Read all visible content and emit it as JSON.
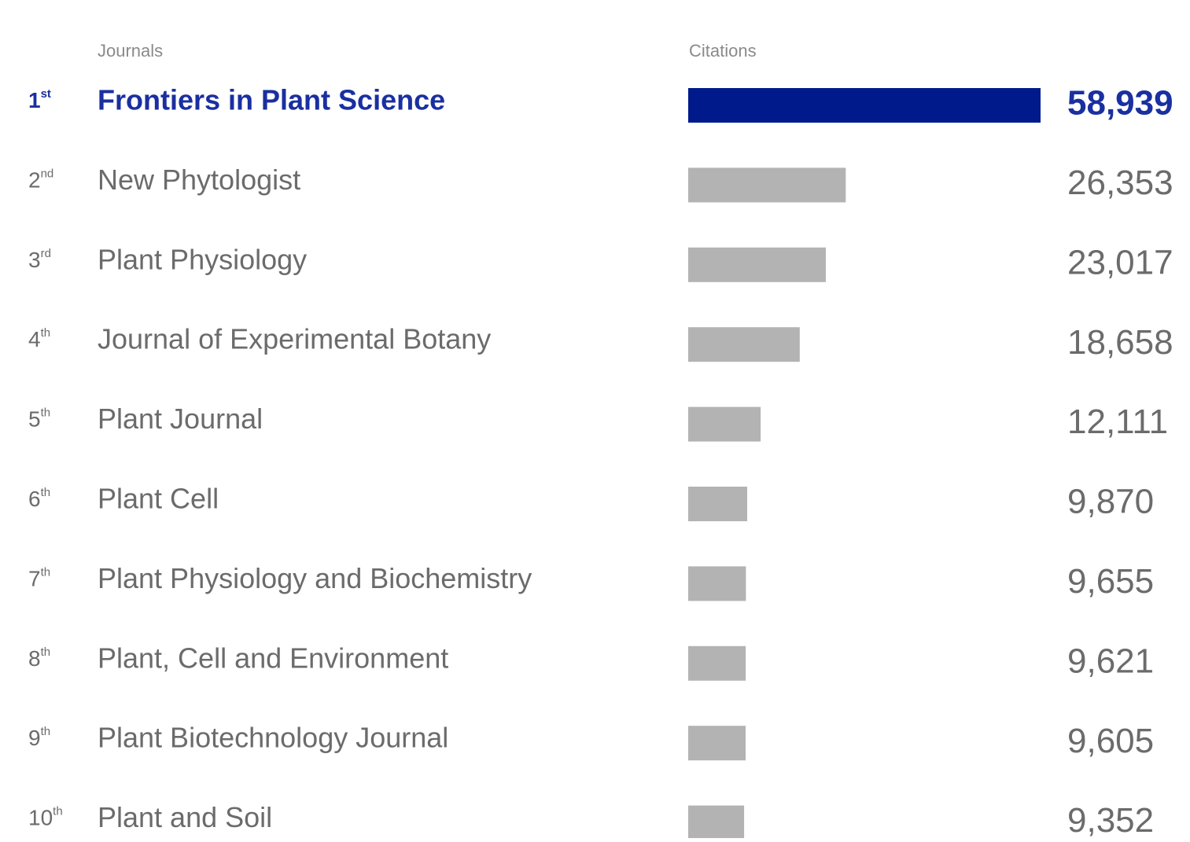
{
  "chart_data": {
    "type": "bar",
    "category_header": "Journals",
    "value_header": "Citations",
    "ranks": [
      [
        "1",
        "st"
      ],
      [
        "2",
        "nd"
      ],
      [
        "3",
        "rd"
      ],
      [
        "4",
        "th"
      ],
      [
        "5",
        "th"
      ],
      [
        "6",
        "th"
      ],
      [
        "7",
        "th"
      ],
      [
        "8",
        "th"
      ],
      [
        "9",
        "th"
      ],
      [
        "10",
        "th"
      ]
    ],
    "categories": [
      "Frontiers in Plant Science",
      "New Phytologist",
      "Plant Physiology",
      "Journal of Experimental Botany",
      "Plant Journal",
      "Plant Cell",
      "Plant Physiology and Biochemistry",
      "Plant, Cell and Environment",
      "Plant Biotechnology Journal",
      "Plant and Soil"
    ],
    "values": [
      58939,
      26353,
      23017,
      18658,
      12111,
      9870,
      9655,
      9621,
      9605,
      9352
    ],
    "value_labels": [
      "58,939",
      "26,353",
      "23,017",
      "18,658",
      "12,111",
      "9,870",
      "9,655",
      "9,621",
      "9,605",
      "9,352"
    ],
    "colors": [
      "#001a8c",
      "#b3b3b3",
      "#b3b3b3",
      "#b3b3b3",
      "#b3b3b3",
      "#b3b3b3",
      "#b3b3b3",
      "#b3b3b3",
      "#b3b3b3",
      "#b3b3b3"
    ]
  }
}
